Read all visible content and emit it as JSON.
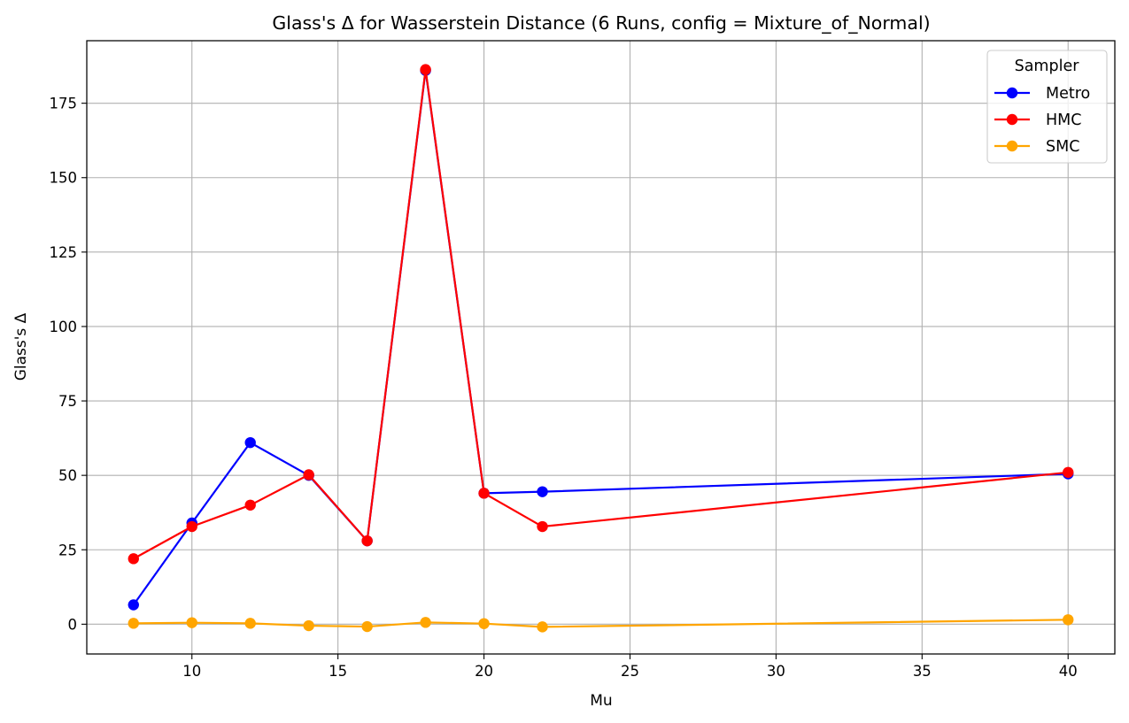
{
  "chart_data": {
    "type": "line",
    "title": "Glass's Δ for Wasserstein Distance (6 Runs, config = Mixture_of_Normal)",
    "xlabel": "Mu",
    "ylabel": "Glass's Δ",
    "xlim": [
      6.4,
      41.6
    ],
    "ylim": [
      -10,
      196
    ],
    "xticks": [
      10,
      15,
      20,
      25,
      30,
      35,
      40
    ],
    "yticks": [
      0,
      25,
      50,
      75,
      100,
      125,
      150,
      175
    ],
    "grid": true,
    "legend": {
      "title": "Sampler",
      "position": "top-right"
    },
    "x": [
      8,
      10,
      12,
      14,
      16,
      18,
      20,
      22,
      40
    ],
    "series": [
      {
        "name": "Metro",
        "color": "#0000ff",
        "values": [
          6.5,
          34,
          61,
          50,
          28,
          186,
          44,
          44.5,
          50.5
        ]
      },
      {
        "name": "HMC",
        "color": "#ff0000",
        "values": [
          22,
          32.8,
          40,
          50.2,
          28,
          186.3,
          44,
          32.8,
          51
        ]
      },
      {
        "name": "SMC",
        "color": "#ffa500",
        "values": [
          0.3,
          0.5,
          0.3,
          -0.5,
          -0.8,
          0.6,
          0.2,
          -0.9,
          1.5
        ]
      }
    ]
  }
}
